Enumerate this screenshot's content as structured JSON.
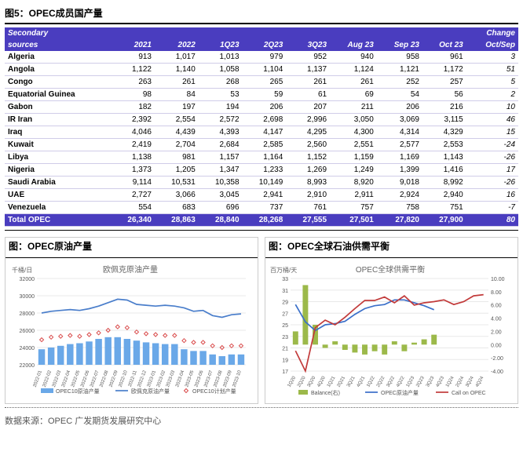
{
  "table_fig": {
    "title": "图5：OPEC成员国产量"
  },
  "table": {
    "header_row1": [
      "Secondary",
      "",
      "",
      "",
      "",
      "",
      "",
      "",
      "",
      "Change"
    ],
    "header_row2": [
      "sources",
      "2021",
      "2022",
      "1Q23",
      "2Q23",
      "3Q23",
      "Aug 23",
      "Sep 23",
      "Oct 23",
      "Oct/Sep"
    ],
    "rows": [
      [
        "Algeria",
        "913",
        "1,017",
        "1,013",
        "979",
        "952",
        "940",
        "958",
        "961",
        "3"
      ],
      [
        "Angola",
        "1,122",
        "1,140",
        "1,058",
        "1,104",
        "1,137",
        "1,124",
        "1,121",
        "1,172",
        "51"
      ],
      [
        "Congo",
        "263",
        "261",
        "268",
        "265",
        "261",
        "261",
        "252",
        "257",
        "5"
      ],
      [
        "Equatorial Guinea",
        "98",
        "84",
        "53",
        "59",
        "61",
        "69",
        "54",
        "56",
        "2"
      ],
      [
        "Gabon",
        "182",
        "197",
        "194",
        "206",
        "207",
        "211",
        "206",
        "216",
        "10"
      ],
      [
        "IR Iran",
        "2,392",
        "2,554",
        "2,572",
        "2,698",
        "2,996",
        "3,050",
        "3,069",
        "3,115",
        "46"
      ],
      [
        "Iraq",
        "4,046",
        "4,439",
        "4,393",
        "4,147",
        "4,295",
        "4,300",
        "4,314",
        "4,329",
        "15"
      ],
      [
        "Kuwait",
        "2,419",
        "2,704",
        "2,684",
        "2,585",
        "2,560",
        "2,551",
        "2,577",
        "2,553",
        "-24"
      ],
      [
        "Libya",
        "1,138",
        "981",
        "1,157",
        "1,164",
        "1,152",
        "1,159",
        "1,169",
        "1,143",
        "-26"
      ],
      [
        "Nigeria",
        "1,373",
        "1,205",
        "1,347",
        "1,233",
        "1,269",
        "1,249",
        "1,399",
        "1,416",
        "17"
      ],
      [
        "Saudi Arabia",
        "9,114",
        "10,531",
        "10,358",
        "10,149",
        "8,993",
        "8,920",
        "9,018",
        "8,992",
        "-26"
      ],
      [
        "UAE",
        "2,727",
        "3,066",
        "3,045",
        "2,941",
        "2,910",
        "2,911",
        "2,924",
        "2,940",
        "16"
      ],
      [
        "Venezuela",
        "554",
        "683",
        "696",
        "737",
        "761",
        "757",
        "758",
        "751",
        "-7"
      ]
    ],
    "total": [
      "Total  OPEC",
      "26,340",
      "28,863",
      "28,840",
      "28,268",
      "27,555",
      "27,501",
      "27,820",
      "27,900",
      "80"
    ]
  },
  "chart_left": {
    "panel_title": "图：OPEC原油产量",
    "chart_title": "欧佩克原油产量",
    "y_label": "千桶/日",
    "y_ticks": [
      22000,
      24000,
      26000,
      28000,
      30000,
      32000
    ],
    "ylim": [
      22000,
      32000
    ],
    "x_labels": [
      "2022-01",
      "2022-02",
      "2022-03",
      "2022-04",
      "2022-05",
      "2022-06",
      "2022-07",
      "2022-08",
      "2022-09",
      "2022-10",
      "2022-11",
      "2022-12",
      "2023-01",
      "2023-02",
      "2023-03",
      "2023-04",
      "2023-05",
      "2023-06",
      "2023-07",
      "2023-08",
      "2023-09",
      "2023-10"
    ],
    "bars": [
      23800,
      24000,
      24200,
      24400,
      24500,
      24700,
      25000,
      25200,
      25200,
      25000,
      24800,
      24600,
      24500,
      24400,
      24400,
      23800,
      23600,
      23600,
      23200,
      23000,
      23200,
      23200
    ],
    "line": [
      28000,
      28200,
      28300,
      28400,
      28300,
      28500,
      28800,
      29200,
      29600,
      29500,
      29000,
      28900,
      28800,
      28900,
      28800,
      28600,
      28200,
      28300,
      27700,
      27500,
      27800,
      27900
    ],
    "markers": [
      24900,
      25200,
      25300,
      25400,
      25300,
      25500,
      25700,
      26000,
      26400,
      26300,
      25800,
      25600,
      25500,
      25400,
      25400,
      24800,
      24600,
      24600,
      24200,
      24000,
      24200,
      24200
    ],
    "bar_color": "#6aa8e8",
    "line_color": "#4a7ecb",
    "marker_color": "#d94a4a",
    "grid_color": "#e8e8e8",
    "legend": [
      "OPEC10原油产量",
      "欧佩克原油产量",
      "OPEC10计划产量"
    ]
  },
  "chart_right": {
    "panel_title": "图：OPEC全球石油供需平衡",
    "chart_title": "OPEC全球供需平衡",
    "y_label": "百万桶/天",
    "yL_ticks": [
      17,
      19,
      21,
      23,
      25,
      27,
      29,
      31,
      33
    ],
    "yL_lim": [
      17,
      33
    ],
    "yR_ticks": [
      -4,
      -2,
      0,
      2,
      4,
      6,
      8,
      10
    ],
    "yR_lim": [
      -4,
      10
    ],
    "x_labels": [
      "1Q20",
      "2Q20",
      "3Q20",
      "4Q20",
      "1Q21",
      "2Q21",
      "3Q21",
      "4Q21",
      "1Q22",
      "2Q22",
      "3Q22",
      "4Q22",
      "1Q23",
      "2Q23",
      "3Q23",
      "4Q23",
      "1Q24",
      "2Q24",
      "3Q24",
      "4Q24"
    ],
    "bars_balance": [
      2.0,
      9.0,
      3.0,
      -0.5,
      0.5,
      -0.8,
      -1.2,
      -1.5,
      -1.0,
      -1.5,
      0.5,
      -1.0,
      0.3,
      0.8,
      1.5,
      null,
      null,
      null,
      null,
      null
    ],
    "line_prod": [
      28.5,
      25.5,
      24.0,
      25.0,
      25.2,
      25.6,
      26.8,
      27.8,
      28.3,
      28.5,
      29.3,
      29.3,
      28.8,
      28.3,
      27.6,
      null,
      null,
      null,
      null,
      null
    ],
    "line_call": [
      20.5,
      17.0,
      24.5,
      25.8,
      25.0,
      26.3,
      27.8,
      29.2,
      29.2,
      29.8,
      28.8,
      30.0,
      28.4,
      28.8,
      29.0,
      29.3,
      28.5,
      29.0,
      30.0,
      30.2
    ],
    "bar_color": "#9cb94a",
    "prod_color": "#3a6fc9",
    "call_color": "#c23a3a",
    "grid_color": "#e8e8e8",
    "legend": [
      "Balance(右)",
      "OPEC原油产量",
      "Call on OPEC"
    ]
  },
  "source": "数据来源：OPEC 广发期货发展研究中心"
}
